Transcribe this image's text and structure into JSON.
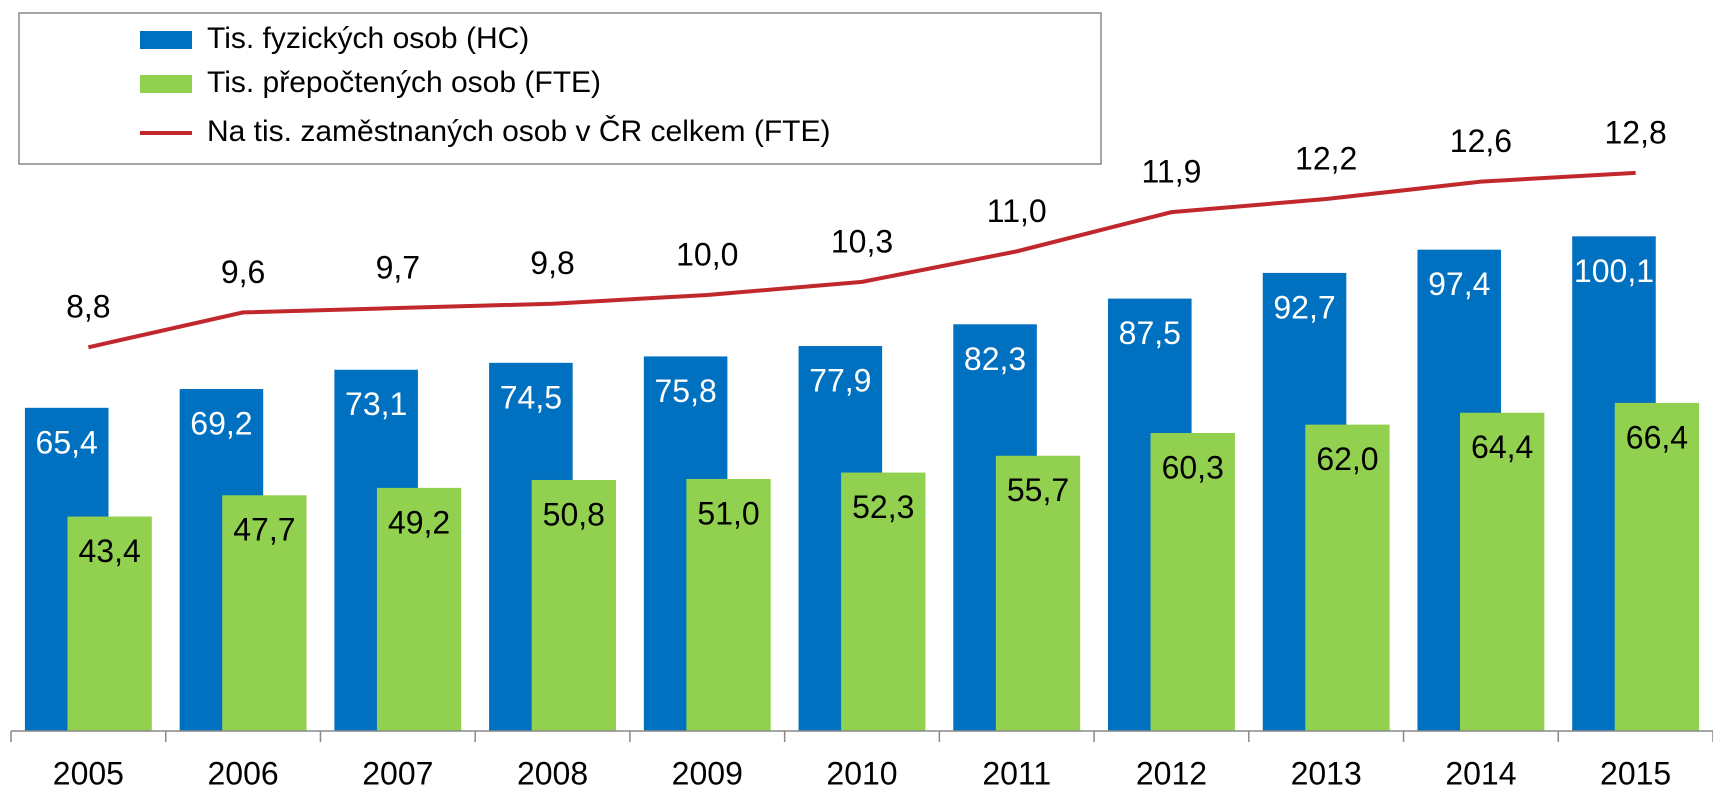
{
  "chart_data": {
    "type": "bar",
    "categories": [
      "2005",
      "2006",
      "2007",
      "2008",
      "2009",
      "2010",
      "2011",
      "2012",
      "2013",
      "2014",
      "2015"
    ],
    "series": [
      {
        "name": "Tis. fyzických osob (HC)",
        "color": "#0070c0",
        "type": "bar",
        "values": [
          65.4,
          69.2,
          73.1,
          74.5,
          75.8,
          77.9,
          82.3,
          87.5,
          92.7,
          97.4,
          100.1
        ],
        "value_labels": [
          "65,4",
          "69,2",
          "73,1",
          "74,5",
          "75,8",
          "77,9",
          "82,3",
          "87,5",
          "92,7",
          "97,4",
          "100,1"
        ]
      },
      {
        "name": "Tis. přepočtených osob (FTE)",
        "color": "#92d050",
        "type": "bar",
        "values": [
          43.4,
          47.7,
          49.2,
          50.8,
          51.0,
          52.3,
          55.7,
          60.3,
          62.0,
          64.4,
          66.4
        ],
        "value_labels": [
          "43,4",
          "47,7",
          "49,2",
          "50,8",
          "51,0",
          "52,3",
          "55,7",
          "60,3",
          "62,0",
          "64,4",
          "66,4"
        ]
      },
      {
        "name": "Na tis. zaměstnaných osob v ČR celkem (FTE)",
        "color": "#c0282e",
        "type": "line",
        "axis": "y2",
        "values": [
          8.8,
          9.6,
          9.7,
          9.8,
          10.0,
          10.3,
          11.0,
          11.9,
          12.2,
          12.6,
          12.8
        ],
        "value_labels": [
          "8,8",
          "9,6",
          "9,7",
          "9,8",
          "10,0",
          "10,3",
          "11,0",
          "11,9",
          "12,2",
          "12,6",
          "12,8"
        ]
      }
    ],
    "ylim": [
      0,
      120
    ],
    "y2lim": [
      0,
      13.6
    ],
    "legend": "top-left"
  }
}
